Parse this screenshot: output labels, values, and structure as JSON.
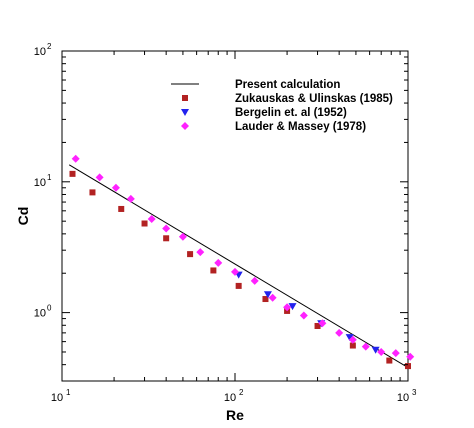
{
  "chart_data": {
    "type": "scatter",
    "title": "",
    "xlabel": "Re",
    "ylabel": "Cd",
    "xscale": "log",
    "yscale": "log",
    "xlim": [
      10,
      1000
    ],
    "ylim": [
      0.3,
      100
    ],
    "x_ticks": [
      {
        "base": "10",
        "exp": "1",
        "value": 10
      },
      {
        "base": "10",
        "exp": "2",
        "value": 100
      },
      {
        "base": "10",
        "exp": "3",
        "value": 1000
      }
    ],
    "y_ticks": [
      {
        "base": "10",
        "exp": "0",
        "value": 1
      },
      {
        "base": "10",
        "exp": "1",
        "value": 10
      },
      {
        "base": "10",
        "exp": "2",
        "value": 100
      }
    ],
    "grid": false,
    "legend_position": "top-right",
    "series": [
      {
        "name": "Present calculation",
        "style": "line",
        "color": "#000000",
        "x": [
          11,
          1000
        ],
        "y": [
          13.5,
          0.38
        ]
      },
      {
        "name": "Zukauskas & Ulinskas (1985)",
        "style": "square",
        "color": "#b22222",
        "x": [
          11.5,
          15,
          22,
          30,
          40,
          55,
          75,
          105,
          150,
          200,
          300,
          480,
          780,
          1000
        ],
        "y": [
          11.5,
          8.3,
          6.2,
          4.8,
          3.7,
          2.8,
          2.1,
          1.6,
          1.27,
          1.03,
          0.79,
          0.56,
          0.43,
          0.39
        ]
      },
      {
        "name": "Bergelin et. al (1952)",
        "style": "triangle-down",
        "color": "#2222ee",
        "x": [
          105,
          155,
          215,
          315,
          460,
          650
        ],
        "y": [
          1.95,
          1.38,
          1.12,
          0.83,
          0.65,
          0.52
        ]
      },
      {
        "name": "Lauder & Massey (1978)",
        "style": "diamond",
        "color": "#ff22ff",
        "x": [
          12,
          16.5,
          20.5,
          25,
          33,
          40,
          50,
          63,
          80,
          100,
          130,
          165,
          200,
          250,
          320,
          400,
          480,
          570,
          700,
          850,
          1030
        ],
        "y": [
          15,
          10.8,
          9.0,
          7.4,
          5.2,
          4.4,
          3.8,
          2.9,
          2.4,
          2.05,
          1.75,
          1.3,
          1.1,
          0.95,
          0.83,
          0.7,
          0.62,
          0.55,
          0.5,
          0.49,
          0.46
        ]
      }
    ]
  }
}
